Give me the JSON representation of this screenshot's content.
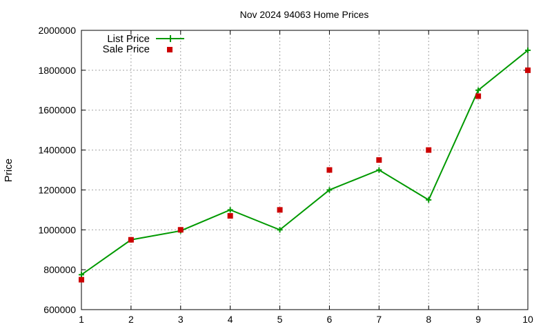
{
  "chart_data": {
    "type": "line",
    "title": "Nov 2024 94063 Home Prices",
    "xlabel": "",
    "ylabel": "Price",
    "xlim": [
      1,
      10
    ],
    "ylim": [
      600000,
      2000000
    ],
    "xticks": [
      "1",
      "2",
      "3",
      "4",
      "5",
      "6",
      "7",
      "8",
      "9",
      "10"
    ],
    "yticks": [
      "600000",
      "800000",
      "1000000",
      "1200000",
      "1400000",
      "1600000",
      "1800000",
      "2000000"
    ],
    "grid": true,
    "legend_position": "top-left",
    "x": [
      1,
      2,
      3,
      4,
      5,
      6,
      7,
      8,
      9,
      10
    ],
    "series": [
      {
        "name": "List Price",
        "style": "line-with-plus-markers",
        "color": "#009900",
        "values": [
          775000,
          950000,
          995000,
          1100000,
          1000000,
          1200000,
          1300000,
          1150000,
          1700000,
          1900000
        ]
      },
      {
        "name": "Sale Price",
        "style": "square-markers",
        "color": "#cc0000",
        "values": [
          750000,
          950000,
          1000000,
          1070000,
          1100000,
          1300000,
          1350000,
          1400000,
          1670000,
          1800000
        ]
      }
    ]
  }
}
